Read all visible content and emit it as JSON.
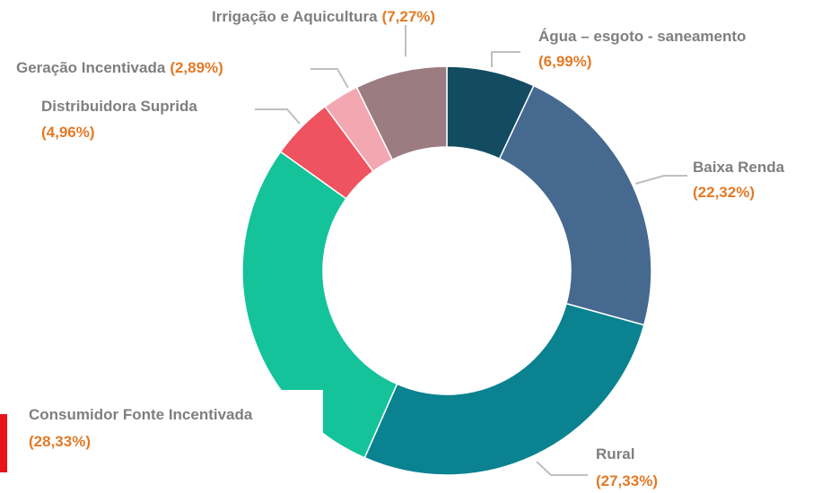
{
  "chart_data": {
    "type": "donut",
    "categories": [
      "Água – esgoto - saneamento",
      "Baixa Renda",
      "Rural",
      "Consumidor Fonte Incentivada",
      "Distribuidora Suprida",
      "Geração Incentivada",
      "Irrigação e Aquicultura"
    ],
    "values": [
      6.99,
      22.32,
      27.33,
      28.33,
      4.96,
      2.89,
      7.27
    ],
    "value_labels": [
      "(6,99%)",
      "(22,32%)",
      "(27,33%)",
      "(28,33%)",
      "(4,96%)",
      "(2,89%)",
      "(7,27%)"
    ],
    "colors": [
      "#134b60",
      "#46698f",
      "#0a8290",
      "#14c39a",
      "#ef5360",
      "#f3a7b1",
      "#9b7c81"
    ]
  }
}
